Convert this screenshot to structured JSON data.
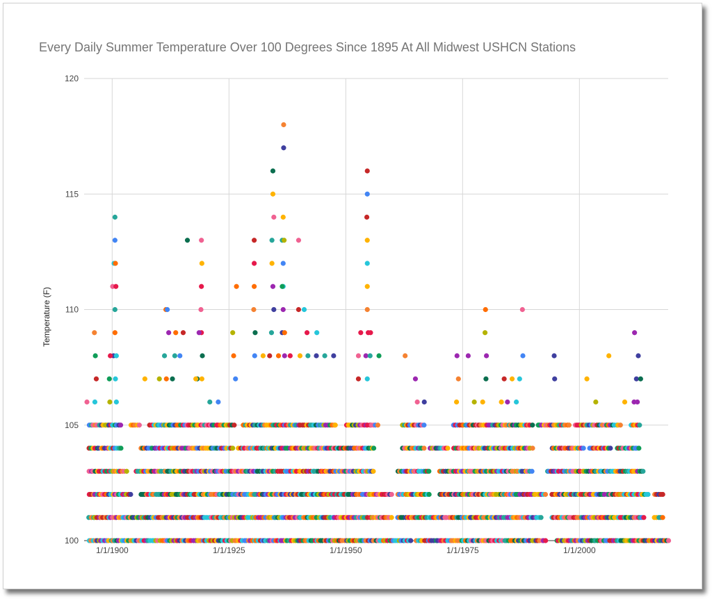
{
  "chart_data": {
    "type": "scatter",
    "title": "Every Daily Summer Temperature Over 100 Degrees Since 1895 At All Midwest USHCN Stations",
    "xlabel": "",
    "ylabel": "Temperature (F)",
    "xlim": [
      1894,
      2019
    ],
    "ylim": [
      100,
      120
    ],
    "x_ticks": [
      1900,
      1925,
      1950,
      1975,
      2000
    ],
    "x_tick_labels": [
      "1/1/1900",
      "1/1/1925",
      "1/1/1950",
      "1/1/1975",
      "1/1/2000"
    ],
    "y_ticks": [
      100,
      105,
      110,
      115,
      120
    ],
    "y_tick_labels": [
      "100",
      "105",
      "110",
      "115",
      "120"
    ],
    "grid": true,
    "legend": "none",
    "colors": [
      "#e6194b",
      "#f58231",
      "#ffb300",
      "#b5b300",
      "#0f9d58",
      "#0b6e4f",
      "#26c6da",
      "#4285f4",
      "#3f3f9f",
      "#9c27b0",
      "#f06292",
      "#c62828",
      "#ff6d00",
      "#26a69a"
    ],
    "points": [
      [
        1900.6,
        114
      ],
      [
        1900.6,
        113
      ],
      [
        1900.4,
        112
      ],
      [
        1900.7,
        112
      ],
      [
        1900.1,
        111
      ],
      [
        1900.8,
        111
      ],
      [
        1900.6,
        110
      ],
      [
        1900.6,
        109
      ],
      [
        1896.2,
        109
      ],
      [
        1900.3,
        108
      ],
      [
        1900.9,
        108
      ],
      [
        1899.6,
        108
      ],
      [
        1896.4,
        108
      ],
      [
        1896.6,
        107
      ],
      [
        1899.4,
        107
      ],
      [
        1900.7,
        107
      ],
      [
        1896.3,
        106
      ],
      [
        1899.5,
        106
      ],
      [
        1900.9,
        106
      ],
      [
        1894.6,
        106
      ],
      [
        1916.1,
        113
      ],
      [
        1919.1,
        113
      ],
      [
        1919.2,
        112
      ],
      [
        1919.1,
        111
      ],
      [
        1919.0,
        110
      ],
      [
        1919.1,
        109
      ],
      [
        1918.6,
        109
      ],
      [
        1915.2,
        109
      ],
      [
        1913.6,
        109
      ],
      [
        1912.1,
        109
      ],
      [
        1919.3,
        108
      ],
      [
        1913.4,
        108
      ],
      [
        1914.5,
        108
      ],
      [
        1911.2,
        108
      ],
      [
        1911.5,
        110
      ],
      [
        1911.8,
        110
      ],
      [
        1926.6,
        111
      ],
      [
        1926.0,
        108
      ],
      [
        1925.8,
        109
      ],
      [
        1926.4,
        107
      ],
      [
        1922.7,
        106
      ],
      [
        1920.9,
        106
      ],
      [
        1918.2,
        107
      ],
      [
        1919.2,
        107
      ],
      [
        1917.9,
        107
      ],
      [
        1911.6,
        107
      ],
      [
        1907.0,
        107
      ],
      [
        1910.1,
        107
      ],
      [
        1912.9,
        107
      ],
      [
        1936.7,
        118
      ],
      [
        1936.7,
        117
      ],
      [
        1934.4,
        116
      ],
      [
        1934.4,
        115
      ],
      [
        1934.6,
        114
      ],
      [
        1936.6,
        114
      ],
      [
        1934.2,
        113
      ],
      [
        1936.4,
        113
      ],
      [
        1936.8,
        113
      ],
      [
        1930.4,
        113
      ],
      [
        1939.9,
        113
      ],
      [
        1930.4,
        112
      ],
      [
        1934.2,
        112
      ],
      [
        1936.6,
        112
      ],
      [
        1930.4,
        111
      ],
      [
        1936.6,
        111
      ],
      [
        1934.4,
        111
      ],
      [
        1936.4,
        111
      ],
      [
        1930.3,
        110
      ],
      [
        1934.6,
        110
      ],
      [
        1936.6,
        110
      ],
      [
        1941.1,
        110
      ],
      [
        1939.9,
        110
      ],
      [
        1930.6,
        109
      ],
      [
        1934.1,
        109
      ],
      [
        1936.4,
        109
      ],
      [
        1936.9,
        109
      ],
      [
        1941.7,
        109
      ],
      [
        1943.8,
        109
      ],
      [
        1930.5,
        108
      ],
      [
        1932.3,
        108
      ],
      [
        1933.7,
        108
      ],
      [
        1935.6,
        108
      ],
      [
        1936.9,
        108
      ],
      [
        1938.1,
        108
      ],
      [
        1940.2,
        108
      ],
      [
        1941.9,
        108
      ],
      [
        1943.7,
        108
      ],
      [
        1945.5,
        108
      ],
      [
        1947.4,
        108
      ],
      [
        1954.6,
        116
      ],
      [
        1954.6,
        115
      ],
      [
        1954.5,
        114
      ],
      [
        1954.6,
        113
      ],
      [
        1954.6,
        112
      ],
      [
        1954.6,
        111
      ],
      [
        1954.6,
        110
      ],
      [
        1954.8,
        109
      ],
      [
        1953.2,
        109
      ],
      [
        1955.3,
        109
      ],
      [
        1954.3,
        108
      ],
      [
        1952.7,
        108
      ],
      [
        1957.1,
        108
      ],
      [
        1955.2,
        108
      ],
      [
        1952.7,
        107
      ],
      [
        1954.6,
        107
      ],
      [
        1962.7,
        108
      ],
      [
        1964.9,
        107
      ],
      [
        1965.3,
        106
      ],
      [
        1966.8,
        106
      ],
      [
        1973.8,
        108
      ],
      [
        1976.2,
        108
      ],
      [
        1979.9,
        110
      ],
      [
        1979.8,
        109
      ],
      [
        1980.1,
        108
      ],
      [
        1980.0,
        107
      ],
      [
        1983.9,
        107
      ],
      [
        1985.6,
        107
      ],
      [
        1987.2,
        107
      ],
      [
        1987.8,
        110
      ],
      [
        1987.9,
        108
      ],
      [
        1994.6,
        108
      ],
      [
        1994.7,
        107
      ],
      [
        2001.6,
        107
      ],
      [
        2006.3,
        108
      ],
      [
        2011.8,
        109
      ],
      [
        2012.6,
        108
      ],
      [
        2012.2,
        107
      ],
      [
        2013.1,
        107
      ],
      [
        1974.1,
        107
      ],
      [
        1977.5,
        106
      ],
      [
        1979.3,
        106
      ],
      [
        1983.3,
        106
      ],
      [
        1984.6,
        106
      ],
      [
        1986.5,
        106
      ],
      [
        2003.5,
        106
      ],
      [
        2009.7,
        106
      ],
      [
        2011.7,
        106
      ],
      [
        2012.4,
        106
      ],
      [
        1973.7,
        106
      ]
    ],
    "row_marks": {
      "105": [
        [
          1895,
          1902
        ],
        [
          1904,
          1906
        ],
        [
          1908,
          1910
        ],
        [
          1910,
          1926
        ],
        [
          1928,
          1948
        ],
        [
          1950,
          1957
        ],
        [
          1962,
          1967
        ],
        [
          1973,
          1990
        ],
        [
          1991,
          1998
        ],
        [
          1999,
          2009
        ],
        [
          2011,
          2013
        ]
      ],
      "104": [
        [
          1895,
          1902
        ],
        [
          1906,
          1926
        ],
        [
          1927,
          1956
        ],
        [
          1962,
          1967
        ],
        [
          1968,
          1972
        ],
        [
          1973,
          1990
        ],
        [
          1994,
          2001
        ],
        [
          2002,
          2007
        ],
        [
          2008,
          2013
        ]
      ],
      "103": [
        [
          1895,
          1903
        ],
        [
          1905,
          1956
        ],
        [
          1961,
          1968
        ],
        [
          1970,
          1990
        ],
        [
          1993,
          2014
        ]
      ],
      "102": [
        [
          1895,
          1904
        ],
        [
          1906,
          1960
        ],
        [
          1961,
          1968
        ],
        [
          1970,
          1993
        ],
        [
          1994,
          2015
        ],
        [
          2016,
          2018
        ]
      ],
      "101": [
        [
          1895,
          1960
        ],
        [
          1961,
          1992
        ],
        [
          1994,
          2014
        ],
        [
          2016,
          2018
        ]
      ],
      "100": [
        [
          1895,
          1964
        ],
        [
          1965,
          1993
        ],
        [
          1995,
          2019
        ]
      ]
    }
  }
}
